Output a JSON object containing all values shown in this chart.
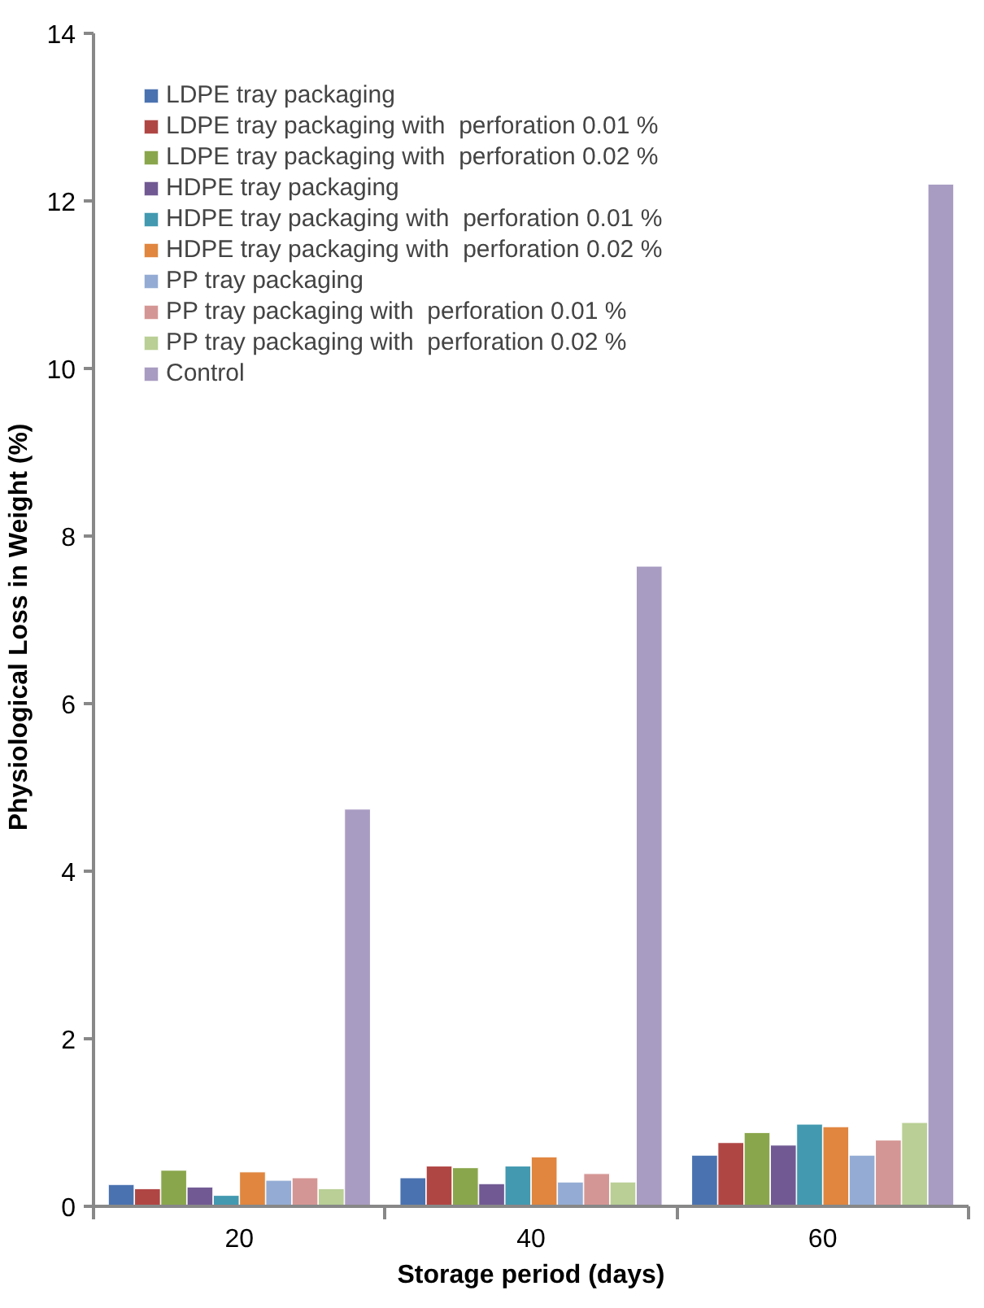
{
  "chart_data": {
    "type": "bar",
    "xlabel": "Storage period (days)",
    "ylabel": "Physiological Loss  in Weight  (%)",
    "categories": [
      "20",
      "40",
      "60"
    ],
    "ylim": [
      0,
      14
    ],
    "yticks": [
      0,
      2,
      4,
      6,
      8,
      10,
      12,
      14
    ],
    "grid": false,
    "legend": "top left",
    "series": [
      {
        "name": "LDPE tray packaging",
        "color": "#4a72b0",
        "values": [
          0.26,
          0.34,
          0.61
        ]
      },
      {
        "name": "LDPE tray packaging with  perforation 0.01 %",
        "color": "#b04644",
        "values": [
          0.21,
          0.48,
          0.76
        ]
      },
      {
        "name": "LDPE tray packaging with  perforation 0.02 %",
        "color": "#8aa64c",
        "values": [
          0.43,
          0.46,
          0.88
        ]
      },
      {
        "name": "HDPE tray packaging",
        "color": "#715a93",
        "values": [
          0.23,
          0.27,
          0.73
        ]
      },
      {
        "name": "HDPE tray packaging with  perforation 0.01 %",
        "color": "#4299b0",
        "values": [
          0.13,
          0.48,
          0.98
        ]
      },
      {
        "name": "HDPE tray packaging with  perforation 0.02 %",
        "color": "#e0863f",
        "values": [
          0.41,
          0.59,
          0.95
        ]
      },
      {
        "name": "PP tray packaging",
        "color": "#94acd4",
        "values": [
          0.31,
          0.29,
          0.61
        ]
      },
      {
        "name": "PP tray packaging with  perforation 0.01 %",
        "color": "#d49694",
        "values": [
          0.34,
          0.39,
          0.79
        ]
      },
      {
        "name": "PP tray packaging with  perforation 0.02 %",
        "color": "#b9cf95",
        "values": [
          0.21,
          0.29,
          1.0
        ]
      },
      {
        "name": "Control",
        "color": "#a99cc2",
        "values": [
          4.74,
          7.64,
          12.2
        ]
      }
    ]
  }
}
